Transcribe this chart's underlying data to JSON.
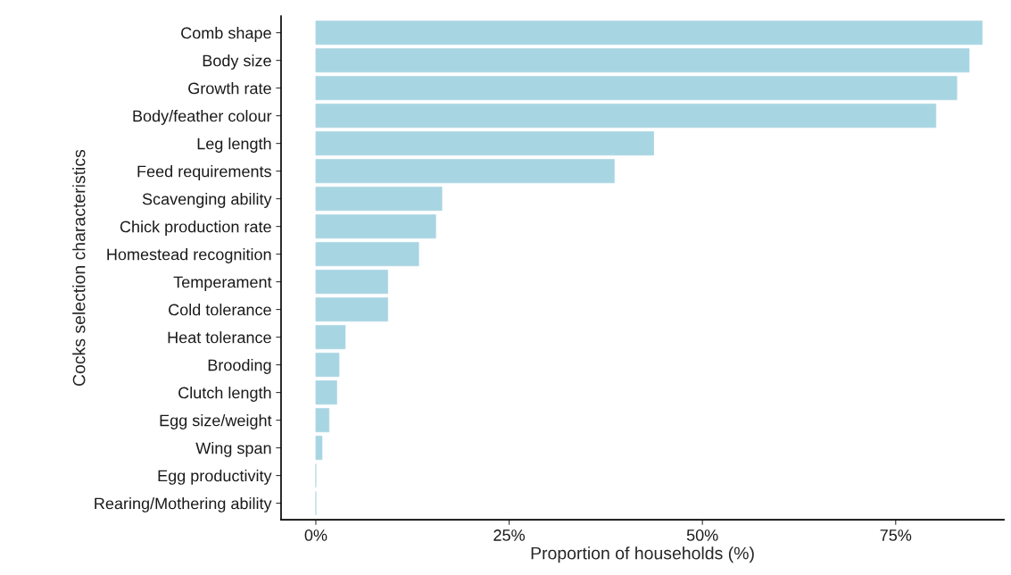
{
  "chart_data": {
    "type": "bar",
    "orientation": "horizontal",
    "xlabel": "Proportion of households (%)",
    "ylabel": "Cocks selection characteristics",
    "categories": [
      "Comb shape",
      "Body size",
      "Growth rate",
      "Body/feather colour",
      "Leg length",
      "Feed requirements",
      "Scavenging ability",
      "Chick production rate",
      "Homestead recognition",
      "Temperament",
      "Cold tolerance",
      "Heat tolerance",
      "Brooding",
      "Clutch length",
      "Egg size/weight",
      "Wing span",
      "Egg productivity",
      "Rearing/Mothering ability"
    ],
    "values": [
      86.2,
      84.5,
      82.9,
      80.2,
      43.7,
      38.6,
      16.3,
      15.5,
      13.3,
      9.3,
      9.3,
      3.8,
      3.0,
      2.7,
      1.7,
      0.8,
      0,
      0
    ],
    "color": "#a8d5e2",
    "xlim": [
      -4.5,
      89
    ],
    "xticks": [
      {
        "value": 0,
        "label": "0%"
      },
      {
        "value": 25,
        "label": "25%"
      },
      {
        "value": 50,
        "label": "50%"
      },
      {
        "value": 75,
        "label": "75%"
      }
    ],
    "grid": false,
    "legend": false
  }
}
